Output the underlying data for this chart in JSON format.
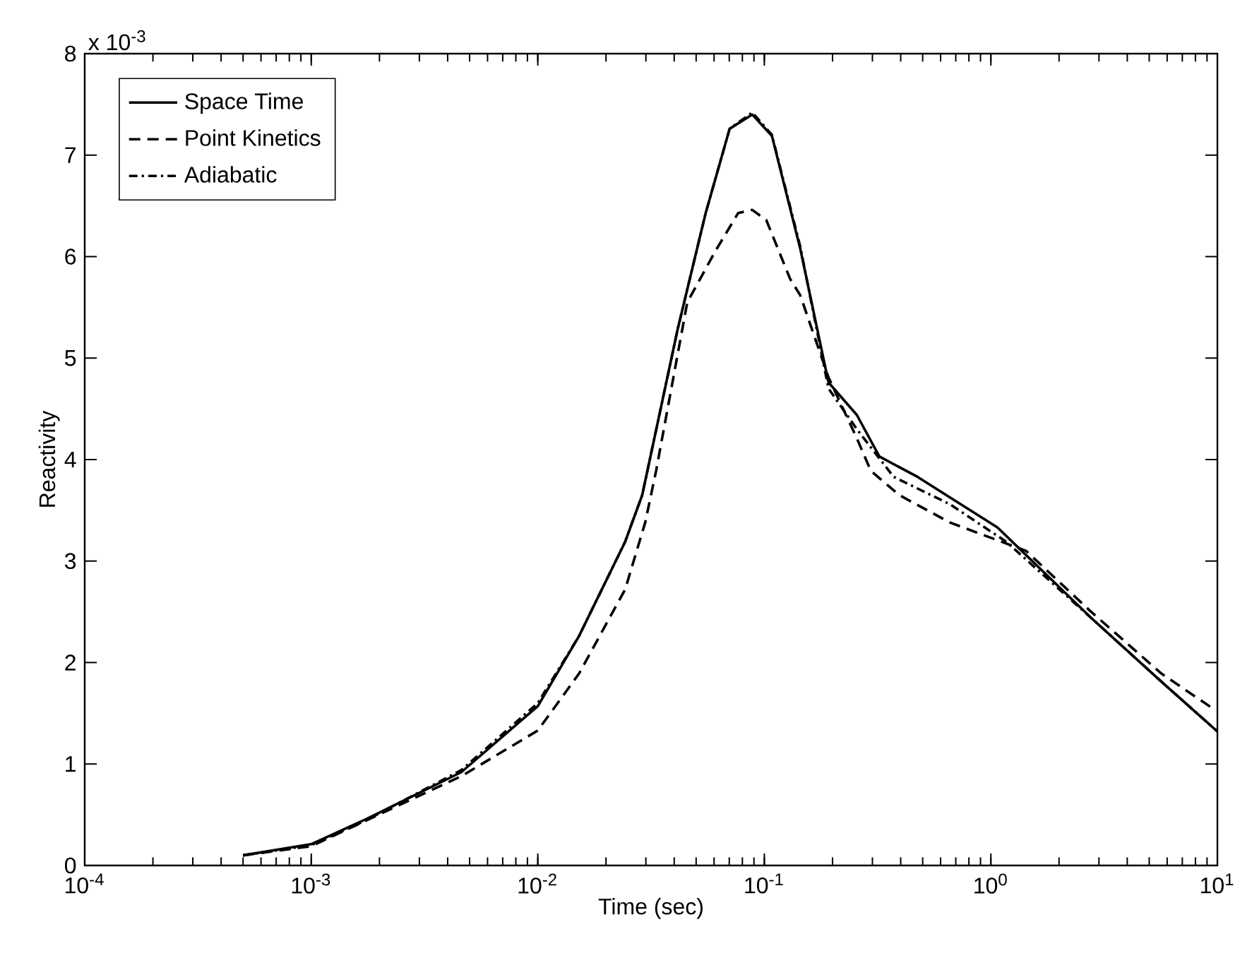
{
  "chart_data": {
    "type": "line",
    "xlabel": "Time (sec)",
    "ylabel": "Reactivity",
    "annotations": [
      "x 10$^{-3}$"
    ],
    "log": "x",
    "xlim": [
      0.0001,
      10
    ],
    "ylim": [
      0,
      8
    ],
    "xticks": [
      {
        "value": 0.0001,
        "label": "10$^{-4}$"
      },
      {
        "value": 0.001,
        "label": "10$^{-3}$"
      },
      {
        "value": 0.01,
        "label": "10$^{-2}$"
      },
      {
        "value": 0.1,
        "label": "10$^{-1}$"
      },
      {
        "value": 1,
        "label": "10$^{0}$"
      },
      {
        "value": 10,
        "label": "10$^{1}$"
      }
    ],
    "yticks": [
      0,
      1,
      2,
      3,
      4,
      5,
      6,
      7,
      8
    ],
    "legend": "top left",
    "grid": false,
    "marker": "none",
    "series": [
      {
        "name": "Space Time",
        "color": "#000000",
        "line_style": "solid",
        "x": [
          0.0005,
          0.001,
          0.00176,
          0.0046,
          0.01,
          0.0152,
          0.0243,
          0.0289,
          0.0414,
          0.0551,
          0.0703,
          0.0885,
          0.108,
          0.144,
          0.192,
          0.256,
          0.322,
          0.474,
          1.07,
          2.77,
          5.67,
          10
        ],
        "values": [
          0.1,
          0.21,
          0.46,
          0.92,
          1.57,
          2.26,
          3.19,
          3.65,
          5.28,
          6.43,
          7.26,
          7.4,
          7.19,
          6.08,
          4.76,
          4.44,
          4.03,
          3.83,
          3.33,
          2.44,
          1.81,
          1.32
        ]
      },
      {
        "name": "Point Kinetics",
        "color": "#000000",
        "line_style": "dashed",
        "x": [
          0.0005,
          0.001,
          0.0046,
          0.01,
          0.0152,
          0.0243,
          0.0298,
          0.0333,
          0.0457,
          0.061,
          0.0767,
          0.0885,
          0.102,
          0.13,
          0.144,
          0.192,
          0.256,
          0.295,
          0.394,
          0.659,
          1.43,
          2.77,
          5.67,
          9.5
        ],
        "values": [
          0.1,
          0.19,
          0.88,
          1.33,
          1.89,
          2.72,
          3.38,
          3.89,
          5.55,
          6.06,
          6.43,
          6.46,
          6.36,
          5.78,
          5.62,
          4.81,
          4.21,
          3.89,
          3.65,
          3.38,
          3.1,
          2.5,
          1.89,
          1.55
        ]
      },
      {
        "name": "Adiabatic",
        "color": "#000000",
        "line_style": "dashdot",
        "x": [
          0.0005,
          0.001,
          0.00176,
          0.0046,
          0.01,
          0.0152,
          0.0243,
          0.0289,
          0.0414,
          0.0551,
          0.0703,
          0.0885,
          0.108,
          0.144,
          0.192,
          0.256,
          0.372,
          0.659,
          1.17,
          2.77,
          5.67,
          10
        ],
        "values": [
          0.1,
          0.2,
          0.45,
          0.94,
          1.6,
          2.26,
          3.19,
          3.65,
          5.28,
          6.43,
          7.26,
          7.42,
          7.2,
          6.1,
          4.7,
          4.3,
          3.83,
          3.56,
          3.19,
          2.44,
          1.81,
          1.32
        ]
      }
    ]
  }
}
